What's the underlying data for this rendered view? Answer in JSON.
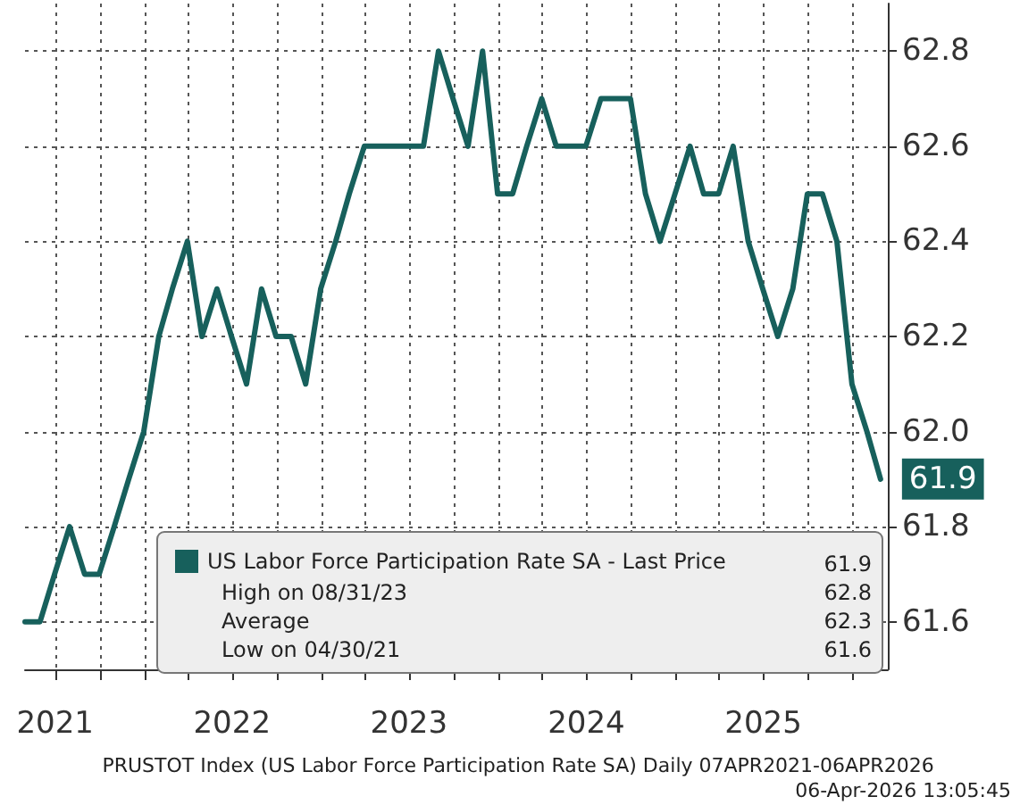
{
  "chart_data": {
    "type": "line",
    "x": [
      "2021-04-30",
      "2021-05-31",
      "2021-06-30",
      "2021-07-31",
      "2021-08-31",
      "2021-09-30",
      "2021-10-31",
      "2021-11-30",
      "2021-12-31",
      "2022-01-31",
      "2022-02-28",
      "2022-03-31",
      "2022-04-30",
      "2022-05-31",
      "2022-06-30",
      "2022-07-31",
      "2022-08-31",
      "2022-09-30",
      "2022-10-31",
      "2022-11-30",
      "2022-12-31",
      "2023-01-31",
      "2023-02-28",
      "2023-03-31",
      "2023-04-30",
      "2023-05-31",
      "2023-06-30",
      "2023-07-31",
      "2023-08-31",
      "2023-09-30",
      "2023-10-31",
      "2023-11-30",
      "2023-12-31",
      "2024-01-31",
      "2024-02-29",
      "2024-03-31",
      "2024-04-30",
      "2024-05-31",
      "2024-06-30",
      "2024-07-31",
      "2024-08-31",
      "2024-09-30",
      "2024-10-31",
      "2024-11-30",
      "2024-12-31",
      "2025-01-31",
      "2025-02-28",
      "2025-03-31",
      "2025-04-30",
      "2025-05-31",
      "2025-06-30",
      "2025-07-31",
      "2025-08-31",
      "2025-09-30",
      "2025-10-31",
      "2025-11-30",
      "2025-12-31",
      "2026-01-31",
      "2026-02-28"
    ],
    "series": [
      {
        "name": "US Labor Force Participation Rate SA - Last Price",
        "color": "#17605c",
        "values": [
          61.6,
          61.6,
          61.7,
          61.8,
          61.7,
          61.7,
          61.8,
          61.9,
          62.0,
          62.2,
          62.3,
          62.4,
          62.2,
          62.3,
          62.2,
          62.1,
          62.3,
          62.2,
          62.2,
          62.1,
          62.3,
          62.4,
          62.5,
          62.6,
          62.6,
          62.6,
          62.6,
          62.6,
          62.8,
          62.7,
          62.6,
          62.8,
          62.5,
          62.5,
          62.6,
          62.7,
          62.6,
          62.6,
          62.6,
          62.7,
          62.7,
          62.7,
          62.5,
          62.4,
          62.5,
          62.6,
          62.5,
          62.5,
          62.6,
          62.4,
          62.3,
          62.2,
          62.3,
          62.5,
          62.5,
          62.4,
          62.1,
          62.0,
          61.9
        ],
        "value_labels": [
          null,
          null,
          null,
          null,
          null,
          null,
          null,
          null,
          null,
          null,
          null,
          null,
          null,
          null,
          null,
          null,
          null,
          null,
          null,
          null,
          null,
          null,
          null,
          null,
          null,
          null,
          null,
          null,
          null,
          null,
          null,
          null,
          null,
          null,
          null,
          null,
          null,
          null,
          null,
          null,
          null,
          null,
          null,
          null,
          null,
          null,
          null,
          null,
          null,
          null,
          null,
          null,
          null,
          null,
          null,
          null,
          null,
          null,
          "61.9"
        ]
      }
    ],
    "xlim": [
      "2021-04-30",
      "2026-03-15"
    ],
    "xticks": [
      {
        "value": "2021-07-01",
        "label": "2021"
      },
      {
        "value": "2021-10-01",
        "label": null
      },
      {
        "value": "2022-01-01",
        "label": null
      },
      {
        "value": "2022-04-01",
        "label": null
      },
      {
        "value": "2022-07-01",
        "label": "2022"
      },
      {
        "value": "2022-10-01",
        "label": null
      },
      {
        "value": "2023-01-01",
        "label": null
      },
      {
        "value": "2023-04-01",
        "label": null
      },
      {
        "value": "2023-07-01",
        "label": "2023"
      },
      {
        "value": "2023-10-01",
        "label": null
      },
      {
        "value": "2024-01-01",
        "label": null
      },
      {
        "value": "2024-04-01",
        "label": null
      },
      {
        "value": "2024-07-01",
        "label": "2024"
      },
      {
        "value": "2024-10-01",
        "label": null
      },
      {
        "value": "2025-01-01",
        "label": null
      },
      {
        "value": "2025-04-01",
        "label": null
      },
      {
        "value": "2025-07-01",
        "label": "2025"
      },
      {
        "value": "2025-10-01",
        "label": null
      },
      {
        "value": "2026-01-01",
        "label": null
      }
    ],
    "ylim": [
      61.5,
      62.9
    ],
    "yticks": [
      {
        "value": 61.6,
        "label": "61.6"
      },
      {
        "value": 61.8,
        "label": "61.8"
      },
      {
        "value": 62.0,
        "label": "62.0"
      },
      {
        "value": 62.2,
        "label": "62.2"
      },
      {
        "value": 62.4,
        "label": "62.4"
      },
      {
        "value": 62.6,
        "label": "62.6"
      },
      {
        "value": 62.8,
        "label": "62.8"
      }
    ],
    "grid": true,
    "legend": "bottom",
    "marker": "none",
    "line_style": "solid",
    "annotations": [
      "61.9",
      "High on 08/31/23",
      "62.8",
      "Average",
      "62.3",
      "Low on 04/30/21",
      "61.6",
      "PRUSTOT Index (US Labor Force Participation Rate SA) Daily 07APR2021-06APR2026",
      "06-Apr-2026 13:05:45"
    ]
  }
}
